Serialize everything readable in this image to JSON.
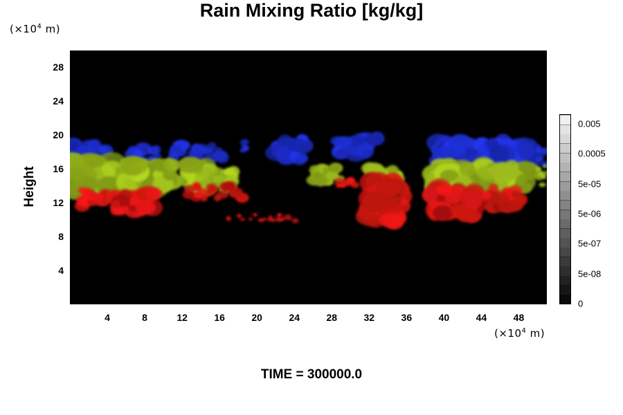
{
  "chart_data": {
    "type": "heatmap",
    "title": "Rain Mixing Ratio [kg/kg]",
    "ylabel": "Height",
    "xunit": {
      "prefix": "(×10",
      "exp": "4",
      "suffix": " m)"
    },
    "yunit": {
      "prefix": "(×10",
      "exp": "4",
      "suffix": " m)"
    },
    "xlim": [
      0,
      51
    ],
    "ylim": [
      0,
      30
    ],
    "xticks": [
      "4",
      "8",
      "12",
      "16",
      "20",
      "24",
      "28",
      "32",
      "36",
      "40",
      "44",
      "48"
    ],
    "yticks": [
      "4",
      "8",
      "12",
      "16",
      "20",
      "24",
      "28"
    ],
    "colorbar": {
      "labels": [
        "0.005",
        "0.0005",
        "5e-05",
        "5e-06",
        "5e-07",
        "5e-08",
        "0"
      ],
      "levels": 20
    },
    "band_colors": {
      "upper": "#1f2fd6",
      "middle": "#9fbf1c",
      "lower": "#d81612"
    },
    "clouds": [
      {
        "layer": "upper",
        "x": [
          0,
          4
        ],
        "y": [
          16.5,
          19.0
        ]
      },
      {
        "layer": "middle",
        "x": [
          0,
          4.5
        ],
        "y": [
          13.2,
          16.8
        ]
      },
      {
        "layer": "lower",
        "x": [
          1.2,
          4.2
        ],
        "y": [
          11.5,
          13.5
        ]
      },
      {
        "layer": "upper",
        "x": [
          6.5,
          9.5
        ],
        "y": [
          16.5,
          18.5
        ]
      },
      {
        "layer": "middle",
        "x": [
          6.0,
          11.0
        ],
        "y": [
          13.5,
          16.5
        ]
      },
      {
        "layer": "lower",
        "x": [
          4.5,
          9.0
        ],
        "y": [
          10.8,
          13.3
        ]
      },
      {
        "layer": "upper",
        "x": [
          11.0,
          16.5
        ],
        "y": [
          17.0,
          18.8
        ]
      },
      {
        "layer": "middle",
        "x": [
          12.5,
          15.0
        ],
        "y": [
          13.5,
          16.5
        ]
      },
      {
        "layer": "middle",
        "x": [
          15.5,
          18.0
        ],
        "y": [
          13.8,
          15.8
        ]
      },
      {
        "layer": "lower",
        "x": [
          12.5,
          18.5
        ],
        "y": [
          12.5,
          14.0
        ]
      },
      {
        "layer": "upper",
        "x": [
          18.5,
          20.0
        ],
        "y": [
          18.2,
          19.2
        ]
      },
      {
        "layer": "lower",
        "x": [
          16.5,
          25.5
        ],
        "y": [
          9.8,
          10.6
        ]
      },
      {
        "layer": "upper",
        "x": [
          22.0,
          25.0
        ],
        "y": [
          17.0,
          19.5
        ]
      },
      {
        "layer": "middle",
        "x": [
          26.0,
          29.0
        ],
        "y": [
          14.5,
          16.5
        ]
      },
      {
        "layer": "lower",
        "x": [
          28.5,
          30.5
        ],
        "y": [
          13.5,
          14.8
        ]
      },
      {
        "layer": "upper",
        "x": [
          28.5,
          33.0
        ],
        "y": [
          17.5,
          19.8
        ]
      },
      {
        "layer": "middle",
        "x": [
          32.0,
          35.0
        ],
        "y": [
          14.0,
          16.5
        ]
      },
      {
        "layer": "lower",
        "x": [
          32.0,
          35.0
        ],
        "y": [
          9.8,
          14.5
        ]
      },
      {
        "layer": "upper",
        "x": [
          39.0,
          49.5
        ],
        "y": [
          16.5,
          19.2
        ]
      },
      {
        "layer": "middle",
        "x": [
          39.0,
          49.0
        ],
        "y": [
          13.5,
          16.5
        ]
      },
      {
        "layer": "lower",
        "x": [
          39.0,
          43.5
        ],
        "y": [
          10.5,
          13.8
        ]
      },
      {
        "layer": "lower",
        "x": [
          44.5,
          48.5
        ],
        "y": [
          11.5,
          13.8
        ]
      },
      {
        "layer": "middle",
        "x": [
          50.0,
          51.0
        ],
        "y": [
          13.5,
          16.5
        ]
      },
      {
        "layer": "upper",
        "x": [
          50.0,
          51.0
        ],
        "y": [
          16.5,
          18.5
        ]
      }
    ],
    "time_label": "TIME = 300000.0"
  }
}
